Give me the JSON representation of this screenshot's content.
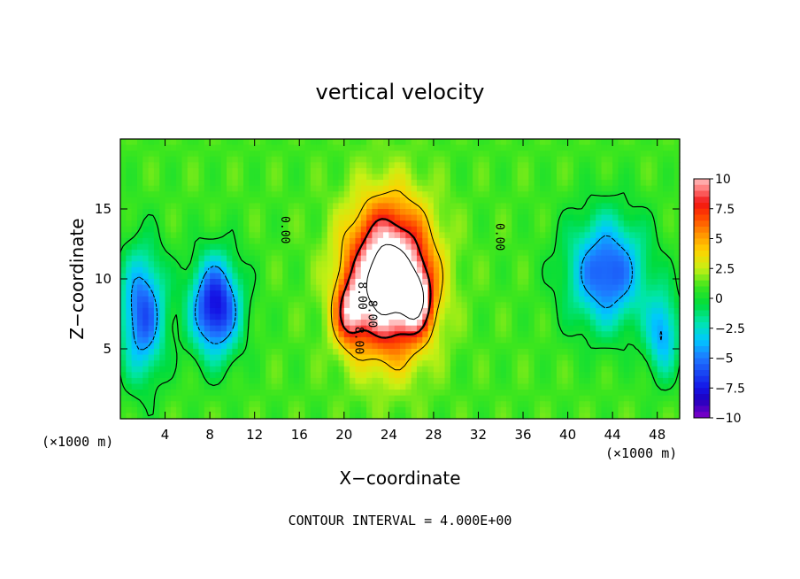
{
  "chart_data": {
    "type": "heatmap",
    "title": "vertical velocity",
    "xlabel": "X−coordinate",
    "ylabel": "Z−coordinate",
    "x_unit_label": "(×1000 m)",
    "footer": "CONTOUR INTERVAL = 4.000E+00",
    "xlim": [
      0,
      50
    ],
    "ylim": [
      0,
      20
    ],
    "x_ticks": [
      "4",
      "8",
      "12",
      "16",
      "20",
      "24",
      "28",
      "32",
      "36",
      "40",
      "44",
      "48"
    ],
    "y_ticks": [
      "5",
      "10",
      "15"
    ],
    "colorbar": {
      "range": [
        -10,
        10
      ],
      "ticks": [
        "10",
        "7.5",
        "5",
        "2.5",
        "0",
        "−2.5",
        "−5",
        "−7.5",
        "−10"
      ]
    },
    "contour_labels": [
      "0.00",
      "0.00",
      "8.00",
      "8.00",
      "8.00"
    ],
    "features": [
      {
        "name": "updraft-core",
        "x": 24,
        "z": 10,
        "w_max": 14,
        "sx": 3.6,
        "sz": 5.0
      },
      {
        "name": "updraft-lobe-left",
        "x": 20.5,
        "z": 7.5,
        "w_max": 6,
        "sx": 1.3,
        "sz": 2.2
      },
      {
        "name": "updraft-lobe-right",
        "x": 26.5,
        "z": 8.5,
        "w_max": 6,
        "sx": 1.3,
        "sz": 2.2
      },
      {
        "name": "downdraft-left",
        "x": 8.5,
        "z": 8.0,
        "w_max": -9,
        "sx": 2.2,
        "sz": 3.5
      },
      {
        "name": "downdraft-far-left",
        "x": 2.0,
        "z": 7.5,
        "w_max": -7,
        "sx": 2.0,
        "sz": 4.5
      },
      {
        "name": "downdraft-right",
        "x": 43.5,
        "z": 10.5,
        "w_max": -7,
        "sx": 3.5,
        "sz": 4.0
      },
      {
        "name": "downdraft-far-right",
        "x": 48.5,
        "z": 6.0,
        "w_max": -5,
        "sx": 1.5,
        "sz": 3.0
      }
    ]
  }
}
